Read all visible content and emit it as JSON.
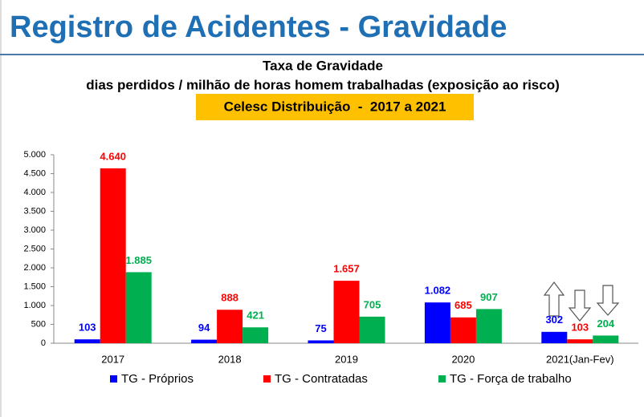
{
  "page_title": "Registro de Acidentes - Gravidade",
  "chart_data": {
    "type": "bar",
    "title": "Taxa de Gravidade",
    "subtitle": "dias perdidos / milhão de horas homem trabalhadas (exposição ao risco)",
    "highlight": "Celesc Distribuição  -  2017 a 2021",
    "categories": [
      "2017",
      "2018",
      "2019",
      "2020",
      "2021(Jan-Fev)"
    ],
    "series": [
      {
        "name": "TG - Próprios",
        "color": "#0000ff",
        "values": [
          103,
          94,
          75,
          1082,
          302
        ],
        "value_labels": [
          "103",
          "94",
          "75",
          "1.082",
          "302"
        ]
      },
      {
        "name": "TG - Contratadas",
        "color": "#ff0000",
        "values": [
          4640,
          888,
          1657,
          685,
          103
        ],
        "value_labels": [
          "4.640",
          "888",
          "1.657",
          "685",
          "103"
        ]
      },
      {
        "name": "TG - Força de trabalho",
        "color": "#00b050",
        "values": [
          1885,
          421,
          705,
          907,
          204
        ],
        "value_labels": [
          "1.885",
          "421",
          "705",
          "907",
          "204"
        ]
      }
    ],
    "ylim": [
      0,
      5000
    ],
    "yticks": [
      0,
      500,
      {
        "value": 1000,
        "label": "1.000"
      },
      {
        "value": 1500,
        "label": "1.500"
      },
      {
        "value": 2000,
        "label": "2.000"
      },
      {
        "value": 2500,
        "label": "2.500"
      },
      {
        "value": 3000,
        "label": "3.000"
      },
      {
        "value": 3500,
        "label": "3.500"
      },
      {
        "value": 4000,
        "label": "4.000"
      },
      {
        "value": 4500,
        "label": "4.500"
      },
      {
        "value": 5000,
        "label": "5.000"
      }
    ],
    "grid": false,
    "legend": "bottom"
  }
}
